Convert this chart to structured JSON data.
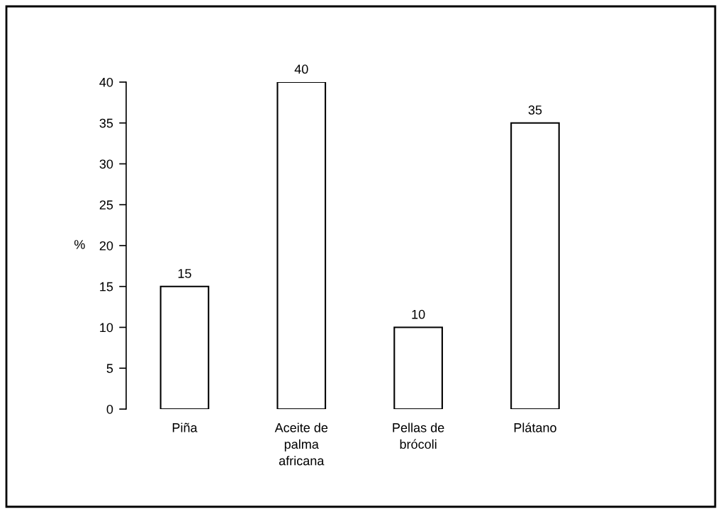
{
  "chart_data": {
    "type": "bar",
    "ylabel": "%",
    "categories": [
      "Piña",
      "Aceite de\npalma\nafricana",
      "Pellas de\nbrócoli",
      "Plátano"
    ],
    "values": [
      15,
      40,
      10,
      35
    ],
    "color": "#ffffff",
    "ylim": [
      0,
      40
    ],
    "yticks": [
      0,
      5,
      10,
      15,
      20,
      25,
      30,
      35,
      40
    ],
    "data_labels": true,
    "grid": false,
    "legend": false
  }
}
